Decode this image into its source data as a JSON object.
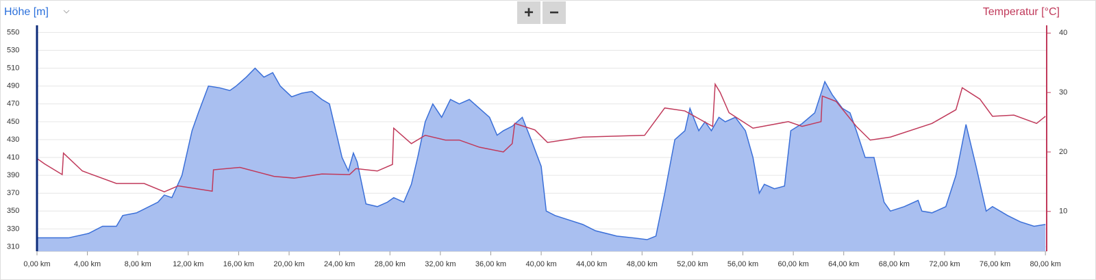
{
  "chart_data": {
    "type": "area-line",
    "y_label": "Höhe [m]",
    "y2_label": "Temperatur [°C]",
    "controls": [
      "+",
      "−"
    ],
    "xlim": [
      0,
      80.1
    ],
    "xticks": [
      {
        "value": 0,
        "label": "0,00 km"
      },
      {
        "value": 4,
        "label": "4,00 km"
      },
      {
        "value": 8,
        "label": "8,00 km"
      },
      {
        "value": 12,
        "label": "12,00 km"
      },
      {
        "value": 16,
        "label": "16,00 km"
      },
      {
        "value": 20,
        "label": "20,00 km"
      },
      {
        "value": 24,
        "label": "24,00 km"
      },
      {
        "value": 28,
        "label": "28,00 km"
      },
      {
        "value": 32,
        "label": "32,00 km"
      },
      {
        "value": 36,
        "label": "36,00 km"
      },
      {
        "value": 40,
        "label": "40,00 km"
      },
      {
        "value": 44,
        "label": "44,00 km"
      },
      {
        "value": 48,
        "label": "48,00 km"
      },
      {
        "value": 52,
        "label": "52,00 km"
      },
      {
        "value": 56,
        "label": "56,00 km"
      },
      {
        "value": 60,
        "label": "60,00 km"
      },
      {
        "value": 64,
        "label": "64,00 km"
      },
      {
        "value": 68,
        "label": "68,00 km"
      },
      {
        "value": 72,
        "label": "72,00 km"
      },
      {
        "value": 76,
        "label": "76,00 km"
      },
      {
        "value": 80,
        "label": "80,00 km"
      }
    ],
    "ylim": [
      305,
      558
    ],
    "yticks": [
      310,
      330,
      350,
      370,
      390,
      410,
      430,
      450,
      470,
      490,
      510,
      530,
      550
    ],
    "y2lim": [
      3.3,
      41.3
    ],
    "y2ticks": [
      10,
      20,
      30,
      40
    ],
    "grid": true,
    "series": [
      {
        "name": "Höhe [m]",
        "color": "#3a6fd8",
        "fill": "#a9bff0",
        "x": [
          0,
          2.5,
          4.1,
          5.2,
          6.3,
          6.8,
          7.9,
          9.6,
          10.1,
          10.7,
          11.5,
          12.3,
          12.8,
          13.6,
          14.5,
          15.3,
          15.8,
          16.6,
          17.3,
          18,
          18.7,
          19.3,
          20.2,
          21,
          21.8,
          22.6,
          23.2,
          23.7,
          24.2,
          24.7,
          25.1,
          25.4,
          26.1,
          27,
          27.8,
          28.3,
          29.1,
          29.7,
          30.2,
          30.8,
          31.4,
          32.1,
          32.8,
          33.5,
          34.3,
          35.1,
          35.9,
          36.5,
          37,
          37.7,
          38.5,
          39.2,
          40,
          40.4,
          41.1,
          42.2,
          43.3,
          44.3,
          46,
          47.3,
          48.4,
          49.1,
          49.8,
          50.6,
          51.4,
          51.8,
          52.5,
          53,
          53.5,
          54.1,
          54.6,
          55.4,
          56.2,
          56.8,
          57.3,
          57.7,
          58.5,
          59.3,
          59.8,
          60.7,
          61.7,
          62.5,
          63.1,
          63.9,
          64.5,
          65,
          65.7,
          66.4,
          67.2,
          67.7,
          68.8,
          69.9,
          70.2,
          71,
          72.1,
          72.9,
          73.7,
          74.5,
          75.3,
          75.8,
          77,
          78,
          79.1,
          80
        ],
        "values": [
          320,
          320,
          325,
          333,
          333,
          345,
          348,
          360,
          368,
          365,
          390,
          440,
          460,
          490,
          488,
          485,
          490,
          500,
          510,
          500,
          505,
          490,
          478,
          482,
          484,
          475,
          470,
          440,
          410,
          395,
          415,
          405,
          358,
          355,
          360,
          365,
          360,
          380,
          410,
          450,
          470,
          455,
          475,
          470,
          475,
          465,
          455,
          435,
          440,
          445,
          455,
          430,
          400,
          350,
          345,
          340,
          335,
          328,
          322,
          320,
          318,
          322,
          370,
          430,
          440,
          465,
          440,
          450,
          440,
          455,
          450,
          455,
          440,
          410,
          370,
          380,
          375,
          378,
          440,
          448,
          460,
          495,
          480,
          465,
          460,
          440,
          410,
          410,
          360,
          350,
          355,
          362,
          350,
          348,
          355,
          390,
          447,
          400,
          350,
          355,
          345,
          338,
          333,
          335
        ]
      },
      {
        "name": "Temperatur [°C]",
        "color": "#c0395a",
        "axis": "y2",
        "x": [
          0,
          0.6,
          2.0,
          2.1,
          3.6,
          6.3,
          8.5,
          10.1,
          11.2,
          13.9,
          14.0,
          16.1,
          18.8,
          20.4,
          22.6,
          24.8,
          25.3,
          27,
          28.2,
          28.3,
          29.7,
          30.8,
          32.4,
          33.5,
          35.1,
          37,
          37.7,
          37.9,
          39.5,
          40.5,
          43.3,
          48.2,
          49.8,
          51.4,
          53.6,
          53.8,
          54.2,
          54.9,
          56.8,
          59.6,
          60.7,
          62.2,
          62.3,
          63.4,
          65,
          66.1,
          67.7,
          71,
          72.9,
          73.4,
          74.8,
          75.8,
          77.5,
          79.3,
          80
        ],
        "values": [
          18.9,
          18,
          16.2,
          19.8,
          16.8,
          14.7,
          14.7,
          13.3,
          14.3,
          13.4,
          17,
          17.4,
          15.9,
          15.6,
          16.3,
          16.2,
          17.2,
          16.8,
          17.9,
          24,
          21.4,
          22.8,
          22,
          22,
          20.8,
          20,
          21.4,
          24.8,
          23.7,
          21.6,
          22.5,
          22.8,
          27.4,
          26.9,
          24.3,
          31.4,
          30,
          26.6,
          24,
          25.1,
          24.3,
          25.1,
          29.4,
          28.5,
          24.3,
          22,
          22.5,
          24.8,
          27.1,
          30.8,
          28.9,
          26,
          26.2,
          24.8,
          26
        ]
      }
    ]
  }
}
